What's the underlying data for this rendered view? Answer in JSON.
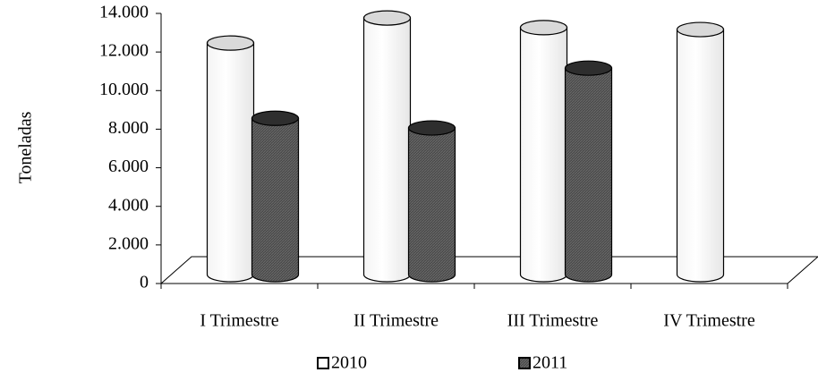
{
  "chart_data": {
    "type": "bar3d",
    "y_label": "Toneladas",
    "categories": [
      "I Trimestre",
      "II Trimestre",
      "III Trimestre",
      "IV Trimestre"
    ],
    "series": [
      {
        "name": "2010",
        "color": "#ffffff",
        "values": [
          12000,
          13300,
          12800,
          12700
        ]
      },
      {
        "name": "2011",
        "color": "#4a4a4a",
        "values": [
          8100,
          7600,
          10700,
          null
        ]
      }
    ],
    "ylim": [
      0,
      14000
    ],
    "yticks": [
      0,
      {
        "value": 2000,
        "label": "2.000"
      },
      {
        "value": 4000,
        "label": "4.000"
      },
      {
        "value": 6000,
        "label": "6.000"
      },
      {
        "value": 8000,
        "label": "8.000"
      },
      {
        "value": 10000,
        "label": "10.000"
      },
      {
        "value": 12000,
        "label": "12.000"
      },
      {
        "value": 14000,
        "label": "14.000"
      }
    ]
  }
}
